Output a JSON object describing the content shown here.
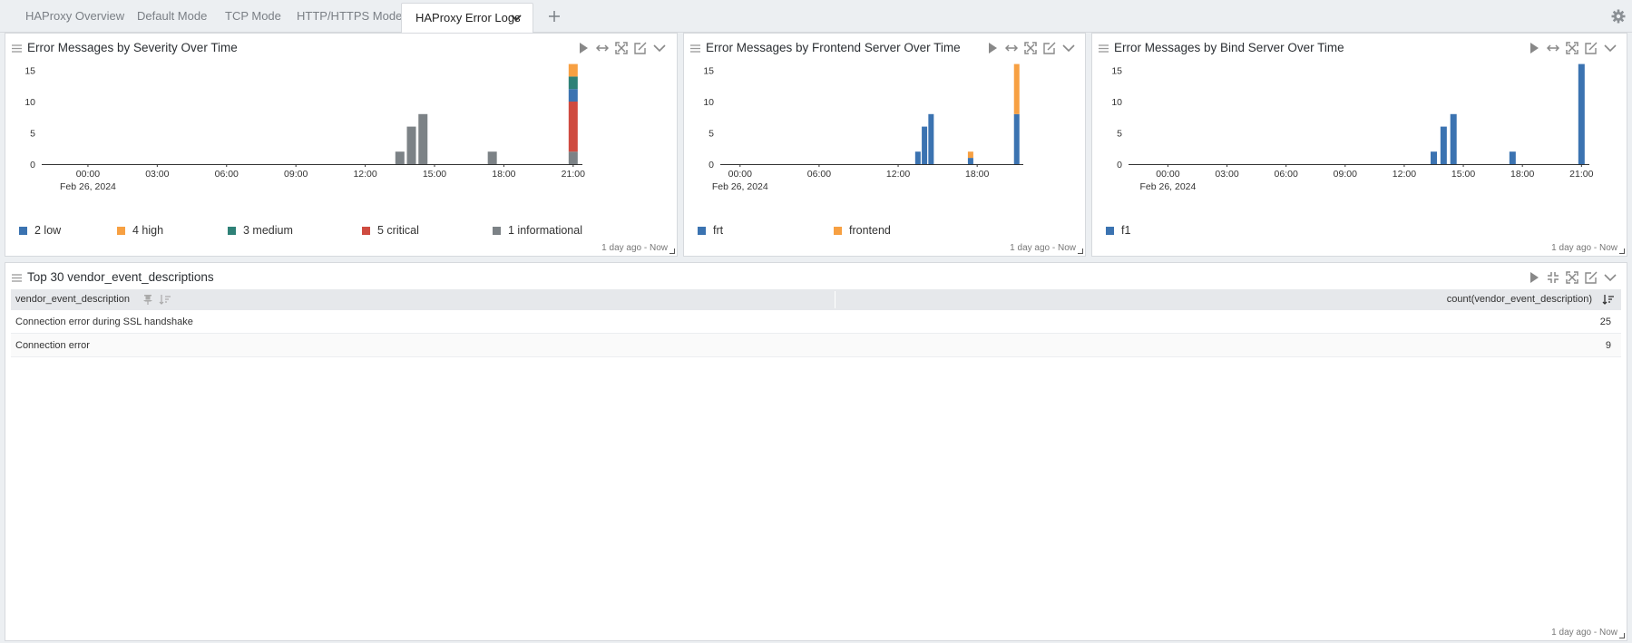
{
  "tabs": [
    {
      "label": "HAProxy Overview",
      "active": false
    },
    {
      "label": "Default Mode",
      "active": false
    },
    {
      "label": "TCP Mode",
      "active": false
    },
    {
      "label": "HTTP/HTTPS Mode",
      "active": false
    },
    {
      "label": "HAProxy Error Logs",
      "active": true
    }
  ],
  "panels": {
    "severity": {
      "title": "Error Messages by Severity Over Time",
      "footer": "1 day ago - Now",
      "legend": [
        {
          "label": "2  low",
          "color": "#3b73b1"
        },
        {
          "label": "4  high",
          "color": "#f7a042"
        },
        {
          "label": "3  medium",
          "color": "#2e8177"
        },
        {
          "label": "5  critical",
          "color": "#cf4b40"
        },
        {
          "label": "1  informational",
          "color": "#7c8286"
        }
      ]
    },
    "frontend": {
      "title": "Error Messages by Frontend Server Over Time",
      "footer": "1 day ago - Now",
      "legend": [
        {
          "label": "frt",
          "color": "#3b73b1"
        },
        {
          "label": "frontend",
          "color": "#f7a042"
        }
      ]
    },
    "bind": {
      "title": "Error Messages by Bind Server Over Time",
      "footer": "1 day ago - Now",
      "legend": [
        {
          "label": "f1",
          "color": "#3b73b1"
        }
      ]
    },
    "table": {
      "title": "Top 30 vendor_event_descriptions",
      "footer": "1 day ago - Now",
      "col1": "vendor_event_description",
      "col2": "count(vendor_event_description)",
      "rows": [
        {
          "desc": "Connection error during SSL handshake",
          "count": "25"
        },
        {
          "desc": "Connection error",
          "count": "9"
        }
      ]
    }
  },
  "chart_data": [
    {
      "type": "bar",
      "title": "Error Messages by Severity Over Time",
      "xlabel": "",
      "ylabel": "",
      "ylim": [
        0,
        16
      ],
      "yticks": [
        0,
        5,
        10,
        15
      ],
      "x_tick_labels": [
        "00:00",
        "03:00",
        "06:00",
        "09:00",
        "12:00",
        "15:00",
        "18:00",
        "21:00"
      ],
      "x_date_label": "Feb 26, 2024",
      "legend_position": "bottom",
      "x_range_hours": [
        -2,
        21.4
      ],
      "bars": [
        {
          "hour": 13.5,
          "stack": [
            {
              "series": "informational",
              "value": 2
            }
          ]
        },
        {
          "hour": 14.0,
          "stack": [
            {
              "series": "informational",
              "value": 6
            }
          ]
        },
        {
          "hour": 14.5,
          "stack": [
            {
              "series": "informational",
              "value": 8
            }
          ]
        },
        {
          "hour": 17.5,
          "stack": [
            {
              "series": "informational",
              "value": 2
            }
          ]
        },
        {
          "hour": 21.0,
          "stack": [
            {
              "series": "informational",
              "value": 2
            },
            {
              "series": "critical",
              "value": 8
            },
            {
              "series": "low",
              "value": 2
            },
            {
              "series": "medium",
              "value": 2
            },
            {
              "series": "high",
              "value": 2
            }
          ]
        }
      ]
    },
    {
      "type": "bar",
      "title": "Error Messages by Frontend Server Over Time",
      "xlabel": "",
      "ylabel": "",
      "ylim": [
        0,
        16
      ],
      "yticks": [
        0,
        5,
        10,
        15
      ],
      "x_tick_labels": [
        "00:00",
        "06:00",
        "12:00",
        "18:00"
      ],
      "x_date_label": "Feb 26, 2024",
      "legend_position": "bottom",
      "x_range_hours": [
        -1.5,
        21.5
      ],
      "bars": [
        {
          "hour": 13.5,
          "stack": [
            {
              "series": "frt",
              "value": 2
            }
          ]
        },
        {
          "hour": 14.0,
          "stack": [
            {
              "series": "frt",
              "value": 6
            }
          ]
        },
        {
          "hour": 14.5,
          "stack": [
            {
              "series": "frt",
              "value": 8
            }
          ]
        },
        {
          "hour": 17.5,
          "stack": [
            {
              "series": "frt",
              "value": 1
            },
            {
              "series": "frontend",
              "value": 1
            }
          ]
        },
        {
          "hour": 21.0,
          "stack": [
            {
              "series": "frt",
              "value": 8
            },
            {
              "series": "frontend",
              "value": 8
            }
          ]
        }
      ]
    },
    {
      "type": "bar",
      "title": "Error Messages by Bind Server Over Time",
      "xlabel": "",
      "ylabel": "",
      "ylim": [
        0,
        16
      ],
      "yticks": [
        0,
        5,
        10,
        15
      ],
      "x_tick_labels": [
        "00:00",
        "03:00",
        "06:00",
        "09:00",
        "12:00",
        "15:00",
        "18:00",
        "21:00"
      ],
      "x_date_label": "Feb 26, 2024",
      "legend_position": "bottom",
      "x_range_hours": [
        -2,
        21.4
      ],
      "bars": [
        {
          "hour": 13.5,
          "stack": [
            {
              "series": "f1",
              "value": 2
            }
          ]
        },
        {
          "hour": 14.0,
          "stack": [
            {
              "series": "f1",
              "value": 6
            }
          ]
        },
        {
          "hour": 14.5,
          "stack": [
            {
              "series": "f1",
              "value": 8
            }
          ]
        },
        {
          "hour": 17.5,
          "stack": [
            {
              "series": "f1",
              "value": 2
            }
          ]
        },
        {
          "hour": 21.0,
          "stack": [
            {
              "series": "f1",
              "value": 16
            }
          ]
        }
      ]
    }
  ],
  "series_colors": {
    "low": "#3b73b1",
    "high": "#f7a042",
    "medium": "#2e8177",
    "critical": "#cf4b40",
    "informational": "#7c8286",
    "frt": "#3b73b1",
    "frontend": "#f7a042",
    "f1": "#3b73b1"
  },
  "icons": [
    "play-icon",
    "expand-horizontal-icon",
    "fullscreen-icon",
    "edit-icon",
    "chevron-down-icon",
    "drag-handle-icon",
    "settings-gear-icon",
    "add-tab-icon"
  ]
}
